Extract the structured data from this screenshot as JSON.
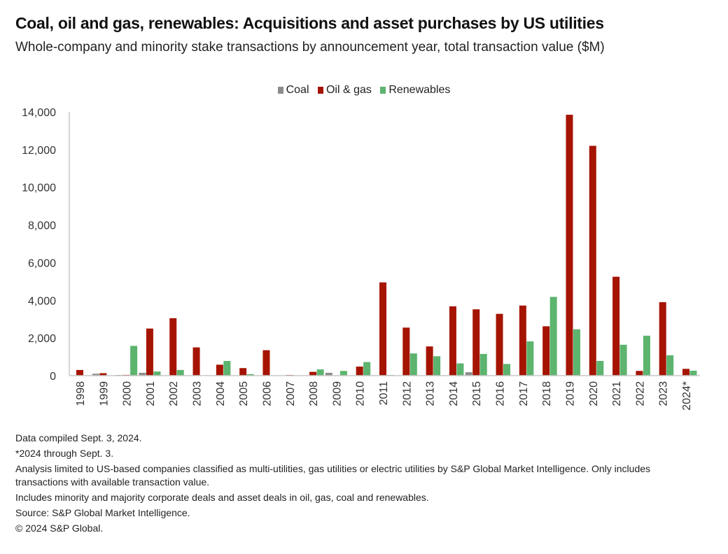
{
  "header": {
    "title": "Coal, oil and gas, renewables: Acquisitions and asset purchases by US utilities",
    "subtitle": "Whole-company and minority stake transactions by announcement year, total transaction value ($M)"
  },
  "legend": [
    {
      "label": "Coal",
      "color": "#8c8c8c"
    },
    {
      "label": "Oil & gas",
      "color": "#a51400"
    },
    {
      "label": "Renewables",
      "color": "#5cb46e"
    }
  ],
  "chart_data": {
    "type": "bar",
    "title": "Coal, oil and gas, renewables: Acquisitions and asset purchases by US utilities",
    "subtitle": "Whole-company and minority stake transactions by announcement year, total transaction value ($M)",
    "xlabel": "",
    "ylabel": "",
    "ylim": [
      0,
      14000
    ],
    "yticks": [
      0,
      2000,
      4000,
      6000,
      8000,
      10000,
      12000,
      14000
    ],
    "ytick_labels": [
      "0",
      "2,000",
      "4,000",
      "6,000",
      "8,000",
      "10,000",
      "12,000",
      "14,000"
    ],
    "grid": false,
    "legend_position": "top-center",
    "categories": [
      "1998",
      "1999",
      "2000",
      "2001",
      "2002",
      "2003",
      "2004",
      "2005",
      "2006",
      "2007",
      "2008",
      "2009",
      "2010",
      "2011",
      "2012",
      "2013",
      "2014",
      "2015",
      "2016",
      "2017",
      "2018",
      "2019",
      "2020",
      "2021",
      "2022",
      "2023",
      "2024*"
    ],
    "series": [
      {
        "name": "Coal",
        "color": "#8c8c8c",
        "values": [
          0,
          100,
          20,
          150,
          0,
          0,
          0,
          0,
          0,
          0,
          0,
          150,
          0,
          0,
          0,
          0,
          0,
          180,
          0,
          0,
          0,
          0,
          0,
          0,
          0,
          0,
          0
        ]
      },
      {
        "name": "Oil & gas",
        "color": "#a51400",
        "values": [
          300,
          130,
          40,
          2500,
          3050,
          1500,
          580,
          400,
          1350,
          30,
          200,
          0,
          480,
          4950,
          2550,
          1550,
          3680,
          3520,
          3280,
          3720,
          2620,
          13850,
          12200,
          5250,
          250,
          3900,
          360
        ]
      },
      {
        "name": "Renewables",
        "color": "#5cb46e",
        "values": [
          0,
          0,
          1580,
          220,
          300,
          0,
          780,
          80,
          0,
          0,
          330,
          250,
          720,
          30,
          1180,
          1030,
          650,
          1150,
          620,
          1820,
          4180,
          2460,
          780,
          1640,
          2120,
          1080,
          260
        ]
      }
    ]
  },
  "notes": [
    "Data compiled Sept. 3, 2024.",
    "*2024 through Sept. 3.",
    "Analysis limited to US-based companies classified as multi-utilities, gas utilities or electric utilities by S&P Global Market Intelligence. Only includes transactions with available transaction value.",
    "Includes minority and majority corporate deals and asset deals in oil, gas, coal and renewables.",
    "Source: S&P Global Market Intelligence.",
    "© 2024 S&P Global."
  ]
}
